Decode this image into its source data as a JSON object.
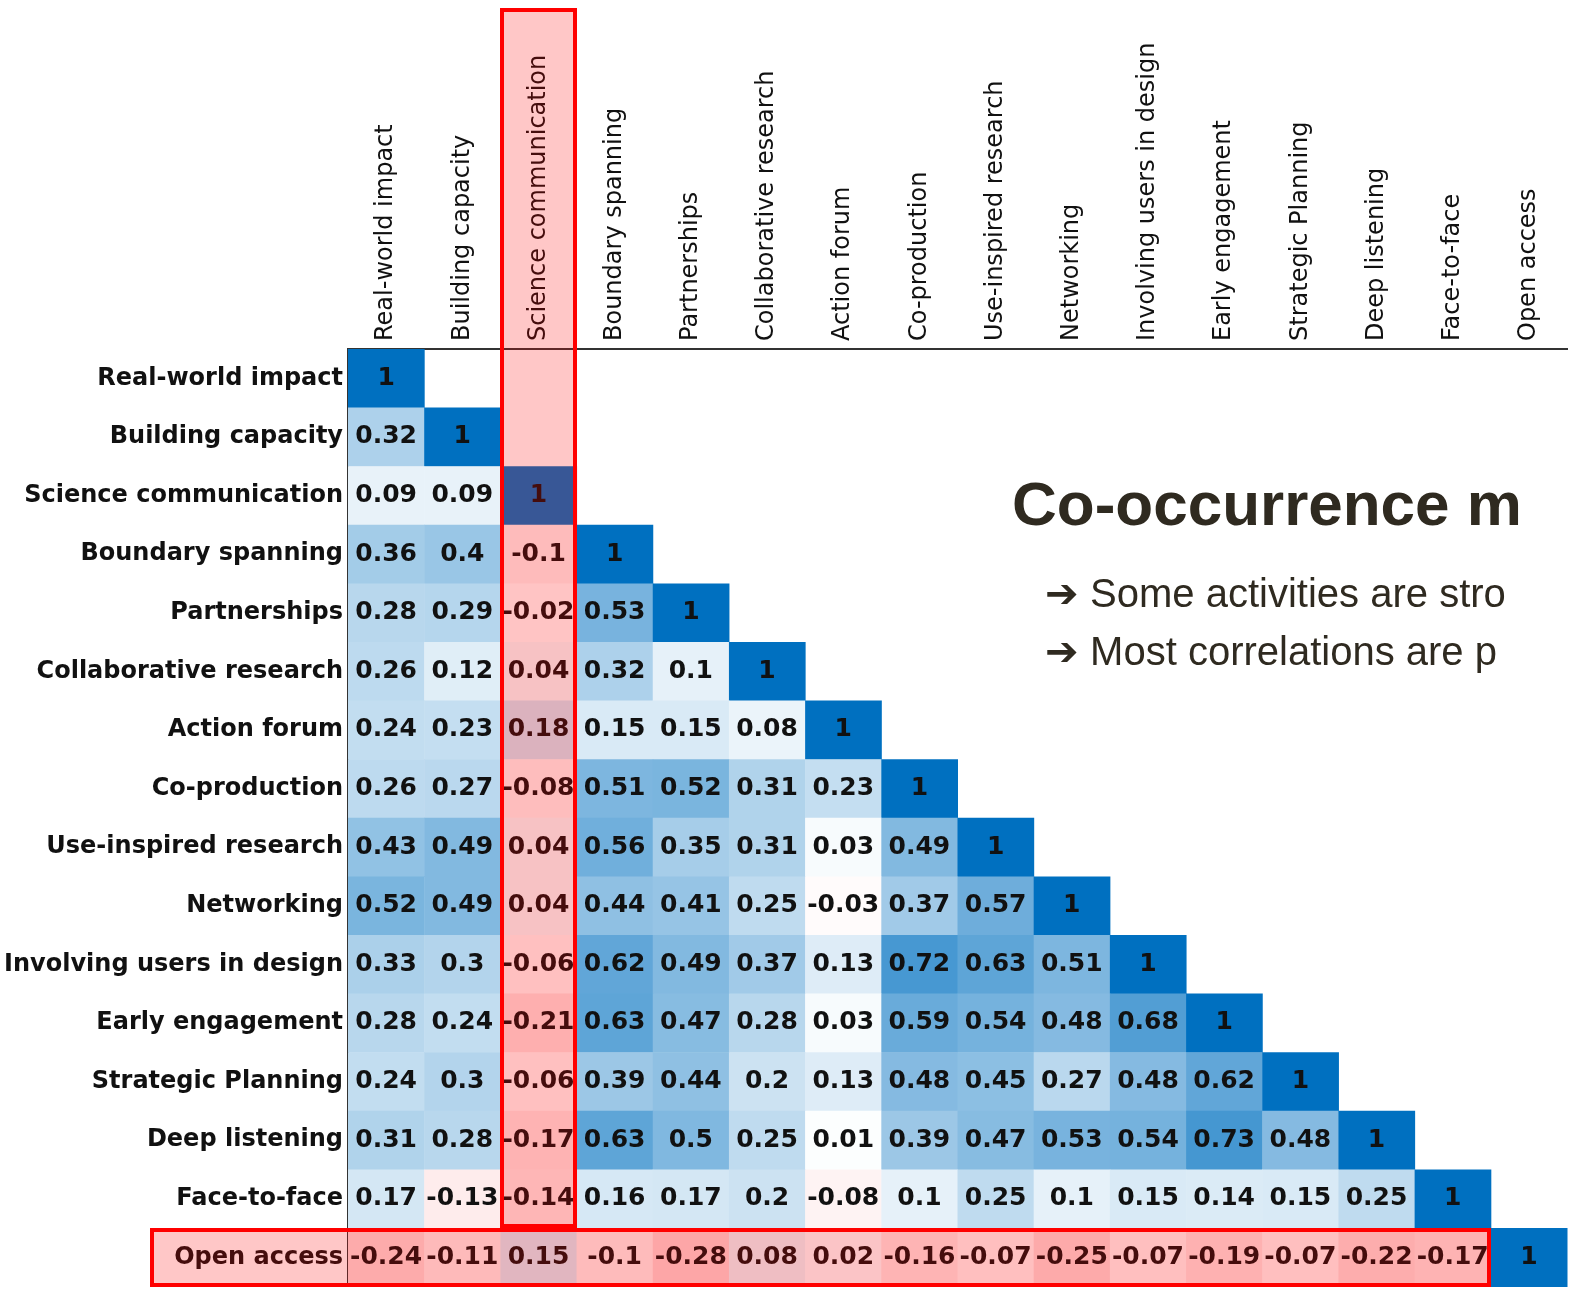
{
  "chart_data": {
    "type": "heatmap",
    "title": "Co-occurrence m",
    "annotations": [
      "➔ Some activities are stro",
      "➔ Most correlations are p"
    ],
    "categories": [
      "Real-world impact",
      "Building capacity",
      "Science communication",
      "Boundary spanning",
      "Partnerships",
      "Collaborative research",
      "Action forum",
      "Co-production",
      "Use-inspired research",
      "Networking",
      "Involving users in design",
      "Early engagement",
      "Strategic Planning",
      "Deep listening",
      "Face-to-face",
      "Open access"
    ],
    "y_categories": [
      "Real-world impact",
      "Building capacity",
      "Science communication",
      "Boundary spanning",
      "Partnerships",
      "Collaborative research",
      "Action forum",
      "Co-production",
      "Use-inspired research",
      "Networking",
      "Involving users in design",
      "Early engagement",
      "Strategic Planning",
      "Deep listening",
      "Face-to-face",
      "Open access"
    ],
    "cells": [
      [
        1,
        null,
        null,
        null,
        null,
        null,
        null,
        null,
        null,
        null,
        null,
        null,
        null,
        null,
        null,
        null
      ],
      [
        0.32,
        1,
        null,
        null,
        null,
        null,
        null,
        null,
        null,
        null,
        null,
        null,
        null,
        null,
        null,
        null
      ],
      [
        0.09,
        0.09,
        1,
        null,
        null,
        null,
        null,
        null,
        null,
        null,
        null,
        null,
        null,
        null,
        null,
        null
      ],
      [
        0.36,
        0.4,
        -0.1,
        1,
        null,
        null,
        null,
        null,
        null,
        null,
        null,
        null,
        null,
        null,
        null,
        null
      ],
      [
        0.28,
        0.29,
        -0.02,
        0.53,
        1,
        null,
        null,
        null,
        null,
        null,
        null,
        null,
        null,
        null,
        null,
        null
      ],
      [
        0.26,
        0.12,
        0.04,
        0.32,
        0.1,
        1,
        null,
        null,
        null,
        null,
        null,
        null,
        null,
        null,
        null,
        null
      ],
      [
        0.24,
        0.23,
        0.18,
        0.15,
        0.15,
        0.08,
        1,
        null,
        null,
        null,
        null,
        null,
        null,
        null,
        null,
        null
      ],
      [
        0.26,
        0.27,
        -0.08,
        0.51,
        0.52,
        0.31,
        0.23,
        1,
        null,
        null,
        null,
        null,
        null,
        null,
        null,
        null
      ],
      [
        0.43,
        0.49,
        0.04,
        0.56,
        0.35,
        0.31,
        0.03,
        0.49,
        1,
        null,
        null,
        null,
        null,
        null,
        null,
        null
      ],
      [
        0.52,
        0.49,
        0.04,
        0.44,
        0.41,
        0.25,
        -0.03,
        0.37,
        0.57,
        1,
        null,
        null,
        null,
        null,
        null,
        null
      ],
      [
        0.33,
        0.3,
        -0.06,
        0.62,
        0.49,
        0.37,
        0.13,
        0.72,
        0.63,
        0.51,
        1,
        null,
        null,
        null,
        null,
        null
      ],
      [
        0.28,
        0.24,
        -0.21,
        0.63,
        0.47,
        0.28,
        0.03,
        0.59,
        0.54,
        0.48,
        0.68,
        1,
        null,
        null,
        null,
        null
      ],
      [
        0.24,
        0.3,
        -0.06,
        0.39,
        0.44,
        0.2,
        0.13,
        0.48,
        0.45,
        0.27,
        0.48,
        0.62,
        1,
        null,
        null,
        null
      ],
      [
        0.31,
        0.28,
        -0.17,
        0.63,
        0.5,
        0.25,
        0.01,
        0.39,
        0.47,
        0.53,
        0.54,
        0.73,
        0.48,
        1,
        null,
        null
      ],
      [
        0.17,
        -0.13,
        -0.14,
        0.16,
        0.17,
        0.2,
        -0.08,
        0.1,
        0.25,
        0.1,
        0.15,
        0.14,
        0.15,
        0.25,
        1,
        null
      ],
      [
        -0.24,
        -0.11,
        0.15,
        -0.1,
        -0.28,
        0.08,
        0.02,
        -0.16,
        -0.07,
        -0.25,
        -0.07,
        -0.19,
        -0.07,
        -0.22,
        -0.17,
        1
      ]
    ],
    "data_labels": true,
    "grid": false,
    "legend": false
  }
}
